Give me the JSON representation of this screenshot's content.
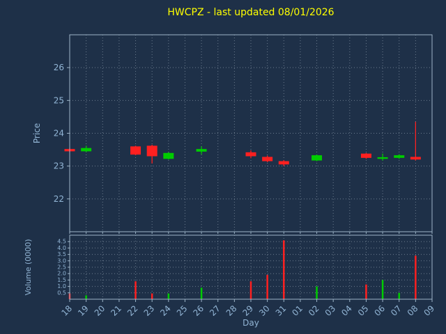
{
  "colors": {
    "background": "#1e3048",
    "title": "#ffff00",
    "axis_text": "#93b6d6",
    "spine": "#9db4c8",
    "grid": "#cdd9e5",
    "up": "#00cc00",
    "down": "#ff2020"
  },
  "chart_data": {
    "type": "candlestick",
    "title": "HWCPZ - last updated 08/01/2026",
    "xlabel": "Day",
    "grid_style": "dotted",
    "price_axis": {
      "label": "Price",
      "lim": [
        21,
        27
      ],
      "ticks": [
        22,
        23,
        24,
        25,
        26
      ]
    },
    "volume_axis": {
      "label": "Volume (0000)",
      "lim": [
        0,
        5
      ],
      "ticks": [
        0.5,
        1,
        1.5,
        2,
        2.5,
        3,
        3.5,
        4,
        4.5
      ]
    },
    "x_ticklabels": [
      "18",
      "19",
      "20",
      "21",
      "22",
      "23",
      "24",
      "25",
      "26",
      "27",
      "28",
      "29",
      "30",
      "31",
      "01",
      "02",
      "03",
      "04",
      "05",
      "06",
      "07",
      "08",
      "09"
    ],
    "candles": [
      {
        "day": "18",
        "open": 23.52,
        "high": 23.56,
        "low": 23.42,
        "close": 23.45,
        "volume": 0.45
      },
      {
        "day": "19",
        "open": 23.45,
        "high": 23.62,
        "low": 23.43,
        "close": 23.55,
        "volume": 0.3
      },
      {
        "day": "22",
        "open": 23.6,
        "high": 23.62,
        "low": 23.33,
        "close": 23.35,
        "volume": 1.4
      },
      {
        "day": "23",
        "open": 23.62,
        "high": 23.65,
        "low": 23.08,
        "close": 23.3,
        "volume": 0.45
      },
      {
        "day": "24",
        "open": 23.22,
        "high": 23.42,
        "low": 23.2,
        "close": 23.4,
        "volume": 0.45
      },
      {
        "day": "26",
        "open": 23.44,
        "high": 23.6,
        "low": 23.36,
        "close": 23.52,
        "volume": 0.9
      },
      {
        "day": "29",
        "open": 23.42,
        "high": 23.48,
        "low": 23.24,
        "close": 23.3,
        "volume": 1.4
      },
      {
        "day": "30",
        "open": 23.28,
        "high": 23.32,
        "low": 23.12,
        "close": 23.15,
        "volume": 1.9
      },
      {
        "day": "31",
        "open": 23.15,
        "high": 23.18,
        "low": 23.0,
        "close": 23.05,
        "volume": 4.6
      },
      {
        "day": "02",
        "open": 23.17,
        "high": 23.35,
        "low": 23.15,
        "close": 23.33,
        "volume": 1.0
      },
      {
        "day": "05",
        "open": 23.38,
        "high": 23.4,
        "low": 23.22,
        "close": 23.25,
        "volume": 1.15
      },
      {
        "day": "06",
        "open": 23.22,
        "high": 23.38,
        "low": 23.17,
        "close": 23.27,
        "volume": 1.5
      },
      {
        "day": "07",
        "open": 23.25,
        "high": 23.36,
        "low": 23.22,
        "close": 23.33,
        "volume": 0.5
      },
      {
        "day": "08",
        "open": 23.28,
        "high": 24.35,
        "low": 23.17,
        "close": 23.2,
        "volume": 3.4
      }
    ]
  }
}
